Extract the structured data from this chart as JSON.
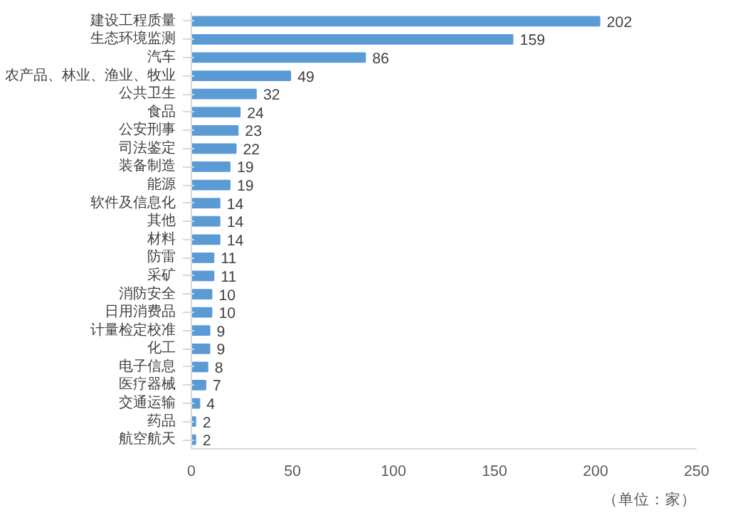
{
  "chart_data": {
    "type": "bar",
    "orientation": "horizontal",
    "categories": [
      "建设工程质量",
      "生态环境监测",
      "汽车",
      "农产品、林业、渔业、牧业",
      "公共卫生",
      "食品",
      "公安刑事",
      "司法鉴定",
      "装备制造",
      "能源",
      "软件及信息化",
      "其他",
      "材料",
      "防雷",
      "采矿",
      "消防安全",
      "日用消费品",
      "计量检定校准",
      "化工",
      "电子信息",
      "医疗器械",
      "交通运输",
      "药品",
      "航空航天"
    ],
    "values": [
      202,
      159,
      86,
      49,
      32,
      24,
      23,
      22,
      19,
      19,
      14,
      14,
      14,
      11,
      11,
      10,
      10,
      9,
      9,
      8,
      7,
      4,
      2,
      2
    ],
    "color": "#5b9bd5",
    "data_labels": true,
    "xlim": [
      0,
      250
    ],
    "xticks": [
      0,
      50,
      100,
      150,
      200,
      250
    ],
    "grid": false,
    "annotations": [
      "（单位：家）"
    ]
  }
}
